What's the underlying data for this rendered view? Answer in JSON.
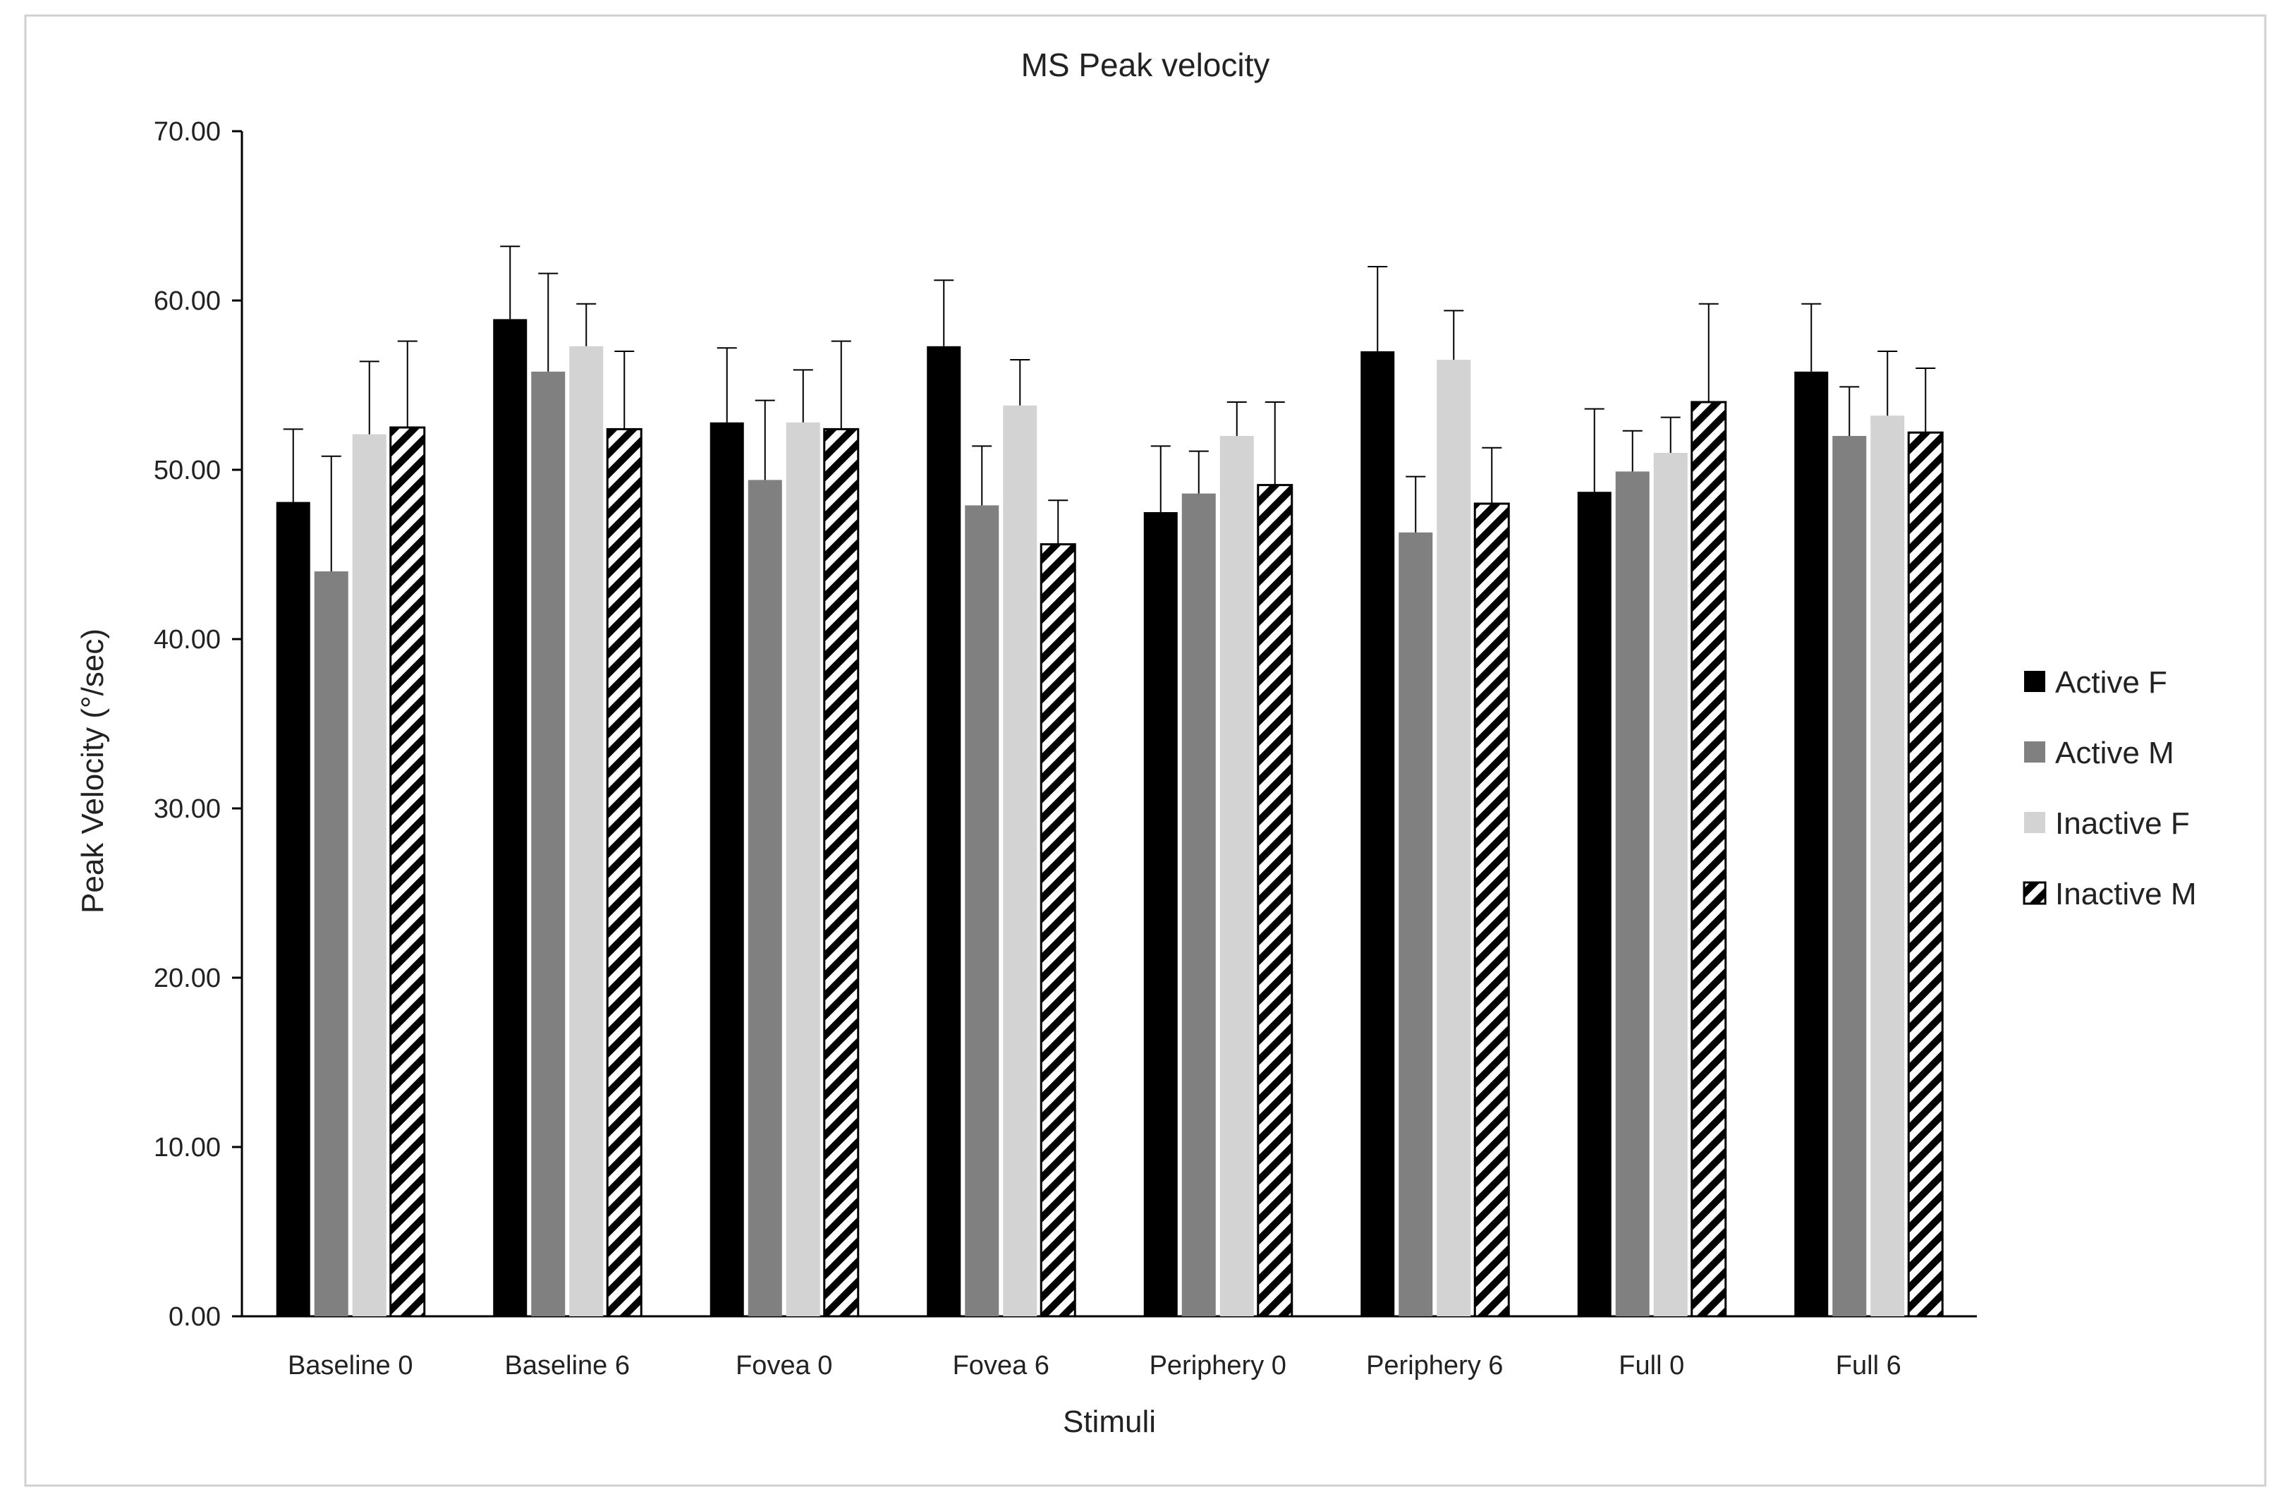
{
  "chart_data": {
    "type": "bar",
    "title": "MS Peak velocity",
    "xlabel": "Stimuli",
    "ylabel": "Peak Velocity (°/sec)",
    "ylim": [
      0,
      70
    ],
    "y_ticks": [
      "0.00",
      "10.00",
      "20.00",
      "30.00",
      "40.00",
      "50.00",
      "60.00",
      "70.00"
    ],
    "grid": false,
    "legend_position": "right",
    "categories": [
      "Baseline 0",
      "Baseline 6",
      "Fovea 0",
      "Fovea 6",
      "Periphery 0",
      "Periphery 6",
      "Full 0",
      "Full 6"
    ],
    "series": [
      {
        "name": "Active F",
        "color": "#000000",
        "pattern": "solid",
        "values": [
          48.1,
          58.9,
          52.8,
          57.3,
          47.5,
          57.0,
          48.7,
          55.8
        ],
        "error": [
          4.3,
          4.3,
          4.4,
          3.9,
          3.9,
          5.0,
          4.9,
          4.0
        ]
      },
      {
        "name": "Active M",
        "color": "#808080",
        "pattern": "solid",
        "values": [
          44.0,
          55.8,
          49.4,
          47.9,
          48.6,
          46.3,
          49.9,
          52.0
        ],
        "error": [
          6.8,
          5.8,
          4.7,
          3.5,
          2.5,
          3.3,
          2.4,
          2.9
        ]
      },
      {
        "name": "Inactive F",
        "color": "#d3d3d3",
        "pattern": "solid",
        "values": [
          52.1,
          57.3,
          52.8,
          53.8,
          52.0,
          56.5,
          51.0,
          53.2
        ],
        "error": [
          4.3,
          2.5,
          3.1,
          2.7,
          2.0,
          2.9,
          2.1,
          3.8
        ]
      },
      {
        "name": "Inactive M",
        "color": "#000000",
        "pattern": "diagonal-hatch",
        "values": [
          52.5,
          52.4,
          52.4,
          45.6,
          49.1,
          48.0,
          54.0,
          52.2
        ],
        "error": [
          5.1,
          4.6,
          5.2,
          2.6,
          4.9,
          3.3,
          5.8,
          3.8
        ]
      }
    ]
  }
}
